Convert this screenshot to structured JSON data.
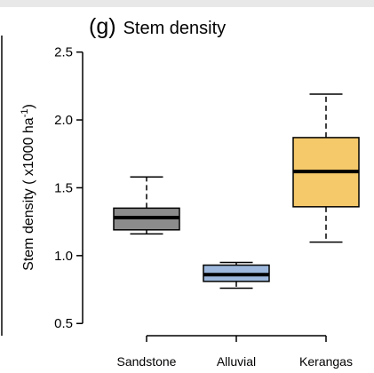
{
  "chart_data": {
    "type": "box",
    "title_prefix": "(g)",
    "title": "Stem density",
    "y_label": {
      "text": "Stem density ( x1000 ha",
      "sup": "-1",
      "end": ")"
    },
    "categories": [
      "Sandstone",
      "Alluvial",
      "Kerangas"
    ],
    "colors": [
      "#8c8c8c",
      "#9db8dc",
      "#f5c96a"
    ],
    "whisker_low": [
      1.16,
      0.76,
      1.1
    ],
    "q1": [
      1.19,
      0.81,
      1.36
    ],
    "median": [
      1.28,
      0.86,
      1.62
    ],
    "q3": [
      1.35,
      0.93,
      1.87
    ],
    "whisker_high": [
      1.58,
      0.95,
      2.19
    ],
    "ylim": [
      0.41,
      2.55
    ],
    "yticks": [
      0.5,
      {
        "value": 1.0,
        "label": "1.0"
      },
      1.5,
      {
        "value": 2.0,
        "label": "2.0"
      },
      2.5
    ]
  }
}
